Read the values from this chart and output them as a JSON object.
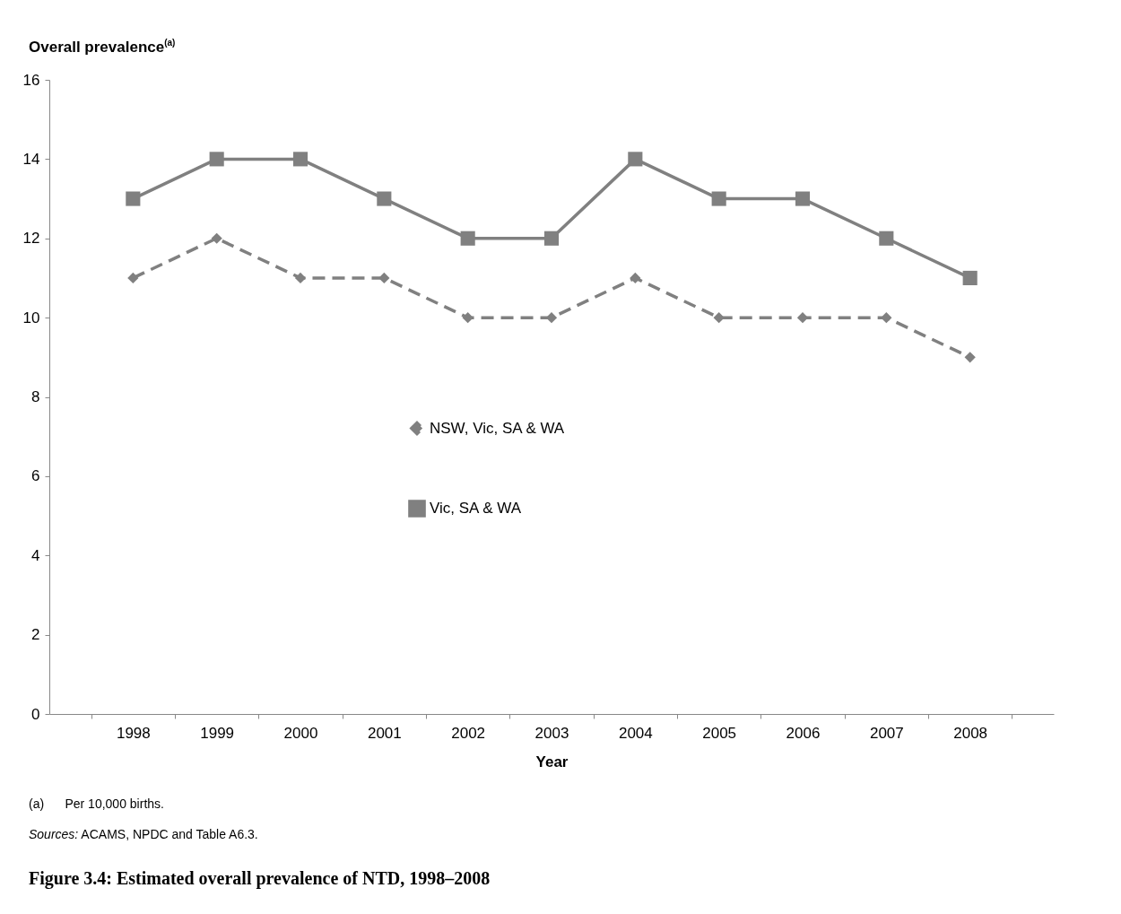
{
  "chart_data": {
    "type": "line",
    "title": "Figure 3.4: Estimated overall prevalence of NTD, 1998–2008",
    "xlabel": "Year",
    "ylabel": "Overall prevalence$^{(a)}$",
    "annotations": [
      "(a)      Per 10,000 births.",
      "Sources: ACAMS, NPDC and Table A6.3."
    ],
    "categories": [
      "1998",
      "1999",
      "2000",
      "2001",
      "2002",
      "2003",
      "2004",
      "2005",
      "2006",
      "2007",
      "2008"
    ],
    "series": [
      {
        "name": "NSW, Vic, SA & WA",
        "color": "#808080",
        "marker": "diamond",
        "line_style": "dashed",
        "values": [
          11,
          12,
          11,
          11,
          10,
          10,
          11,
          10,
          10,
          10,
          9
        ]
      },
      {
        "name": "Vic, SA & WA",
        "color": "#808080",
        "marker": "square",
        "line_style": "solid",
        "values": [
          13,
          14,
          14,
          13,
          12,
          12,
          14,
          13,
          13,
          12,
          11
        ]
      }
    ],
    "ylim": [
      0,
      16
    ],
    "yticks": [
      0,
      2,
      4,
      6,
      8,
      10,
      12,
      14,
      16
    ],
    "grid": false,
    "legend": "center"
  }
}
